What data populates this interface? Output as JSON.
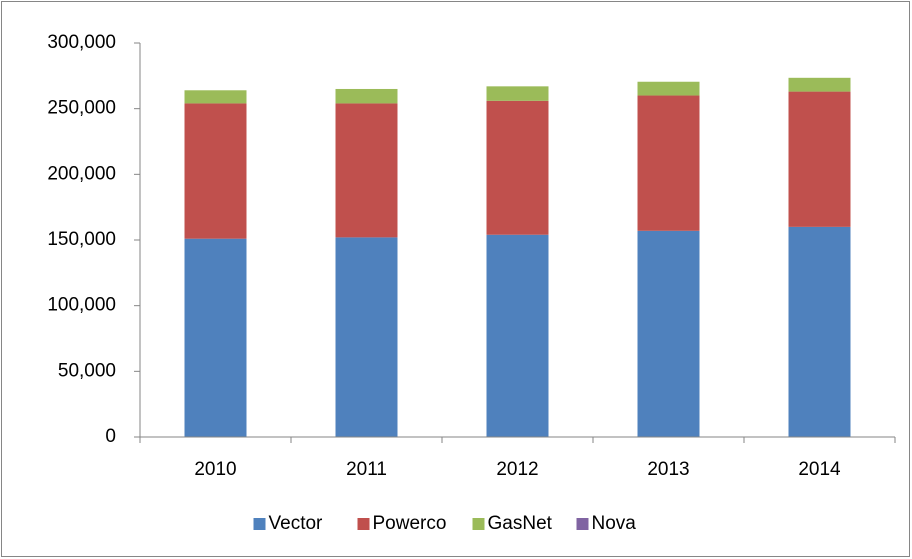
{
  "chart_data": {
    "type": "stacked_bar",
    "categories": [
      "2010",
      "2011",
      "2012",
      "2013",
      "2014"
    ],
    "series": [
      {
        "name": "Vector",
        "color": "#4f81bd",
        "values": [
          151000,
          152000,
          154000,
          157000,
          160000
        ]
      },
      {
        "name": "Powerco",
        "color": "#c0504d",
        "values": [
          103000,
          102000,
          102000,
          103000,
          103000
        ]
      },
      {
        "name": "GasNet",
        "color": "#9bbb59",
        "values": [
          10000,
          11000,
          11000,
          10500,
          10500
        ]
      },
      {
        "name": "Nova",
        "color": "#8064a2",
        "values": [
          0,
          0,
          0,
          0,
          0
        ]
      }
    ],
    "ylim": [
      0,
      300000
    ],
    "yticks": [
      0,
      {
        "value": 50000,
        "label": "50,000"
      },
      {
        "value": 100000,
        "label": "100,000"
      },
      {
        "value": 150000,
        "label": "150,000"
      },
      {
        "value": 200000,
        "label": "200,000"
      },
      {
        "value": 250000,
        "label": "250,000"
      },
      {
        "value": 300000,
        "label": "300,000"
      }
    ],
    "grid": false,
    "legend": "bottom"
  }
}
